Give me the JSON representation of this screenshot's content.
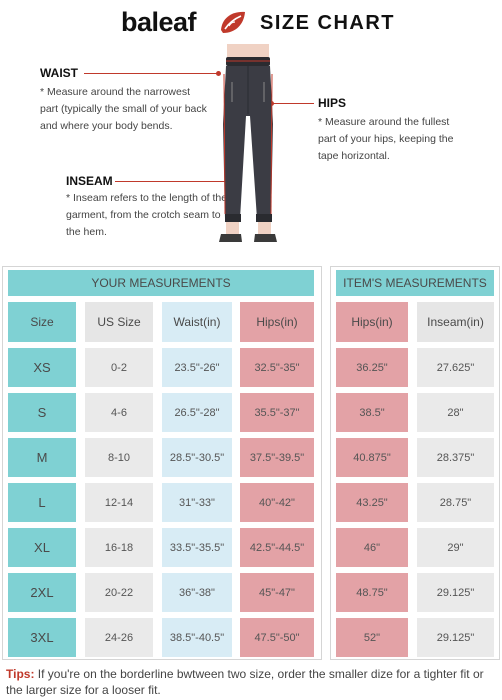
{
  "brand": {
    "name": "baleaf",
    "accent": "#c0392b"
  },
  "title": "SIZE CHART",
  "guide": {
    "waist": {
      "title": "WAIST",
      "text": "* Measure around the narrowest part (typically the small of your back and where your body bends."
    },
    "hips": {
      "title": "HIPS",
      "text": "* Measure around the fullest part of your hips, keeping the tape horizontal."
    },
    "inseam": {
      "title": "INSEAM",
      "text": "* Inseam refers to the length of the garment, from the crotch seam to the hem."
    }
  },
  "your_measurements": {
    "title": "YOUR MEASUREMENTS",
    "headers": [
      "Size",
      "US Size",
      "Waist(in)",
      "Hips(in)"
    ],
    "rows": [
      [
        "XS",
        "0-2",
        "23.5\"-26\"",
        "32.5\"-35\""
      ],
      [
        "S",
        "4-6",
        "26.5\"-28\"",
        "35.5\"-37\""
      ],
      [
        "M",
        "8-10",
        "28.5\"-30.5\"",
        "37.5\"-39.5\""
      ],
      [
        "L",
        "12-14",
        "31\"-33\"",
        "40\"-42\""
      ],
      [
        "XL",
        "16-18",
        "33.5\"-35.5\"",
        "42.5\"-44.5\""
      ],
      [
        "2XL",
        "20-22",
        "36\"-38\"",
        "45\"-47\""
      ],
      [
        "3XL",
        "24-26",
        "38.5\"-40.5\"",
        "47.5\"-50\""
      ]
    ]
  },
  "item_measurements": {
    "title": "ITEM'S MEASUREMENTS",
    "headers": [
      "Hips(in)",
      "Inseam(in)"
    ],
    "rows": [
      [
        "36.25\"",
        "27.625\""
      ],
      [
        "38.5\"",
        "28\""
      ],
      [
        "40.875\"",
        "28.375\""
      ],
      [
        "43.25\"",
        "28.75\""
      ],
      [
        "46\"",
        "29\""
      ],
      [
        "48.75\"",
        "29.125\""
      ],
      [
        "52\"",
        "29.125\""
      ]
    ]
  },
  "tips": {
    "label": "Tips:",
    "text": " If you're on the borderline bwtween two size, order the smaller dize for a tighter fit or the larger size for a looser fit."
  },
  "colors": {
    "teal": "#7fd1d3",
    "pink": "#e3a2a6",
    "gray": "#eaeaea",
    "light_blue": "#d8ecf5"
  }
}
